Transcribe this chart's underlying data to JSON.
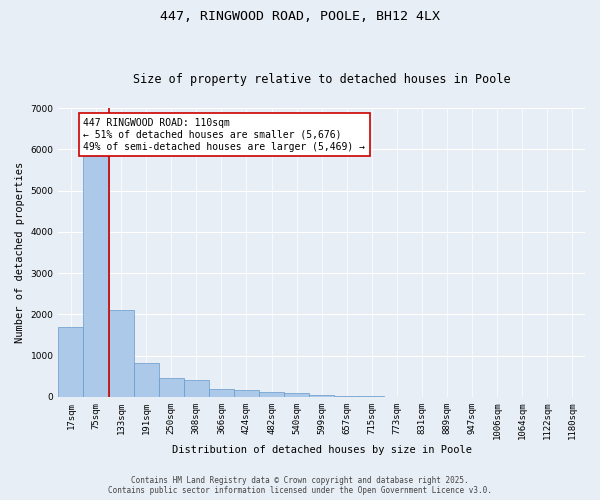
{
  "title": "447, RINGWOOD ROAD, POOLE, BH12 4LX",
  "subtitle": "Size of property relative to detached houses in Poole",
  "xlabel": "Distribution of detached houses by size in Poole",
  "ylabel": "Number of detached properties",
  "categories": [
    "17sqm",
    "75sqm",
    "133sqm",
    "191sqm",
    "250sqm",
    "308sqm",
    "366sqm",
    "424sqm",
    "482sqm",
    "540sqm",
    "599sqm",
    "657sqm",
    "715sqm",
    "773sqm",
    "831sqm",
    "889sqm",
    "947sqm",
    "1006sqm",
    "1064sqm",
    "1122sqm",
    "1180sqm"
  ],
  "values": [
    1700,
    5900,
    2100,
    830,
    460,
    420,
    200,
    165,
    120,
    85,
    50,
    28,
    14,
    7,
    4,
    2,
    1,
    1,
    0,
    0,
    0
  ],
  "bar_color": "#adc9e9",
  "bar_edge_color": "#6699cc",
  "vline_x": 1,
  "vline_color": "#cc0000",
  "annotation_title": "447 RINGWOOD ROAD: 110sqm",
  "annotation_line1": "← 51% of detached houses are smaller (5,676)",
  "annotation_line2": "49% of semi-detached houses are larger (5,469) →",
  "annotation_box_color": "#cc0000",
  "annotation_bg": "#ffffff",
  "ylim": [
    0,
    7000
  ],
  "yticks": [
    0,
    1000,
    2000,
    3000,
    4000,
    5000,
    6000,
    7000
  ],
  "bg_color": "#e8eef5",
  "plot_bg": "#e8eef5",
  "footer1": "Contains HM Land Registry data © Crown copyright and database right 2025.",
  "footer2": "Contains public sector information licensed under the Open Government Licence v3.0.",
  "title_fontsize": 9.5,
  "subtitle_fontsize": 8.5,
  "label_fontsize": 7.5,
  "tick_fontsize": 6.5,
  "annotation_fontsize": 7,
  "footer_fontsize": 5.5
}
